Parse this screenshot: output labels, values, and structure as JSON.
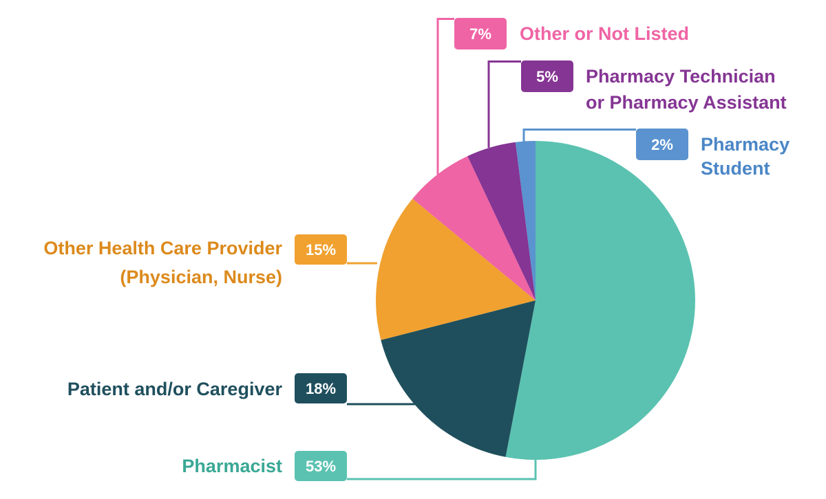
{
  "chart_data": {
    "type": "pie",
    "title": "",
    "start": "12 o'clock",
    "direction": "clockwise",
    "slices": [
      {
        "id": "pharmacist",
        "lines": [
          "Pharmacist"
        ],
        "value": 53,
        "pct_label": "53%",
        "color": "#5bc2b1",
        "text_color": "#3aa895"
      },
      {
        "id": "patient",
        "lines": [
          "Patient and/or Caregiver"
        ],
        "value": 18,
        "pct_label": "18%",
        "color": "#1f4f5d",
        "text_color": "#1f4f5d"
      },
      {
        "id": "other-hcp",
        "lines": [
          "Other Health Care Provider",
          "(Physician, Nurse)"
        ],
        "value": 15,
        "pct_label": "15%",
        "color": "#f0a130",
        "text_color": "#dc8a1c"
      },
      {
        "id": "other",
        "lines": [
          "Other or Not Listed"
        ],
        "value": 7,
        "pct_label": "7%",
        "color": "#ef64a4",
        "text_color": "#ef64a4"
      },
      {
        "id": "technician",
        "lines": [
          "Pharmacy Technician",
          "or Pharmacy Assistant"
        ],
        "value": 5,
        "pct_label": "5%",
        "color": "#853594",
        "text_color": "#853594"
      },
      {
        "id": "student",
        "lines": [
          "Pharmacy",
          "Student"
        ],
        "value": 2,
        "pct_label": "2%",
        "color": "#5a93cf",
        "text_color": "#4a86c6"
      }
    ]
  }
}
